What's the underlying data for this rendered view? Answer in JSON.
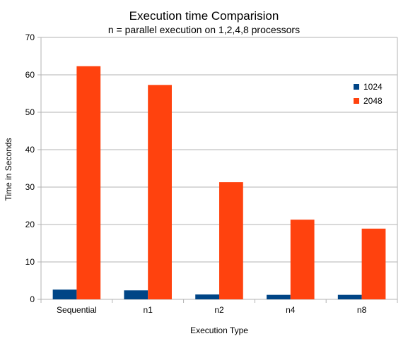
{
  "chart_data": {
    "type": "bar",
    "title": "Execution time Comparision",
    "subtitle": "n = parallel execution on 1,2,4,8 processors",
    "xlabel": "Execution Type",
    "ylabel": "Time in Seconds",
    "categories": [
      "Sequential",
      "n1",
      "n2",
      "n4",
      "n8"
    ],
    "series": [
      {
        "name": "1024",
        "color": "#004586",
        "values": [
          2.6,
          2.4,
          1.3,
          1.2,
          1.2
        ]
      },
      {
        "name": "2048",
        "color": "#ff420e",
        "values": [
          62.3,
          57.3,
          31.3,
          21.3,
          18.9
        ]
      }
    ],
    "ylim": [
      0,
      70
    ],
    "yticks": [
      0,
      10,
      20,
      30,
      40,
      50,
      60,
      70
    ],
    "grid": true,
    "legend": "right"
  }
}
